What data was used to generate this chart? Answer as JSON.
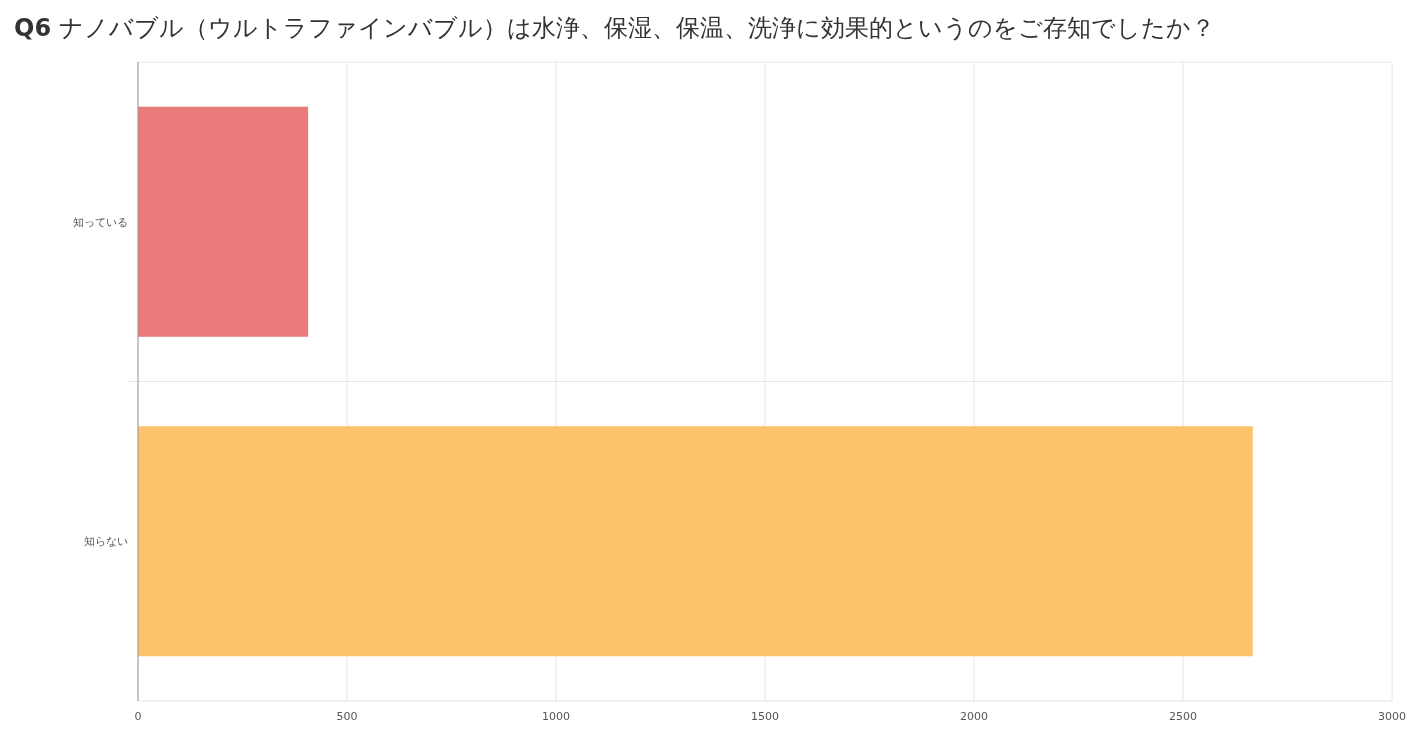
{
  "chart_data": {
    "type": "bar",
    "title": "Q6 ナノバブル（ウルトラファインバブル）は水浄、保湿、保温、洗浄に効果的というのをご存知でしたか？",
    "orientation": "horizontal",
    "categories": [
      "知っている",
      "知らない"
    ],
    "values": [
      407,
      2667
    ],
    "colors": [
      "#eb7b7b",
      "#fcc36b"
    ],
    "xlim": [
      0,
      3000
    ],
    "xticks": [
      0,
      500,
      1000,
      1500,
      2000,
      2500,
      3000
    ],
    "grid": "x"
  }
}
